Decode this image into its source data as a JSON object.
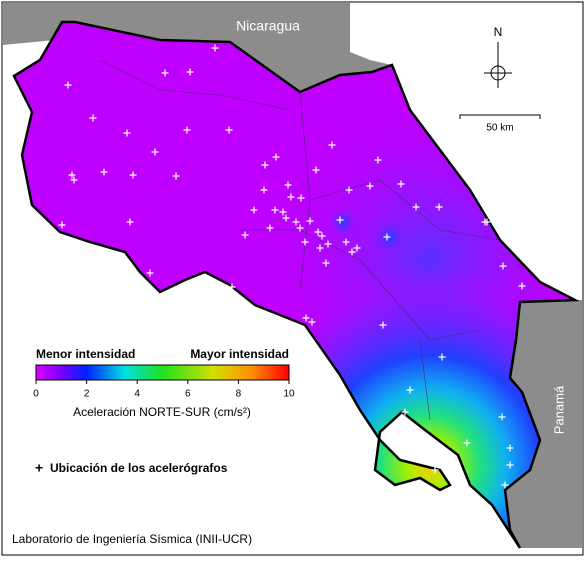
{
  "labels": {
    "north_country": "Nicaragua",
    "south_country": "Panamá",
    "compass": "N",
    "scale": "50 km"
  },
  "colorbar": {
    "low_label": "Menor intensidad",
    "high_label": "Mayor intensidad",
    "lim": [
      0,
      10
    ],
    "ticks": [
      0,
      2,
      4,
      6,
      8,
      10
    ],
    "title": "Aceleración NORTE-SUR (cm/s²)"
  },
  "legend": {
    "symbol": "+",
    "text": "Ubicación de los acelerógrafos"
  },
  "footer": "Laboratorio de Ingeniería Sísmica (INII-UCR)"
}
